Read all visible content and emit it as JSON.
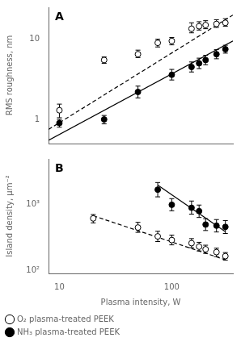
{
  "chart_data": [
    {
      "type": "scatter",
      "ylabel": "RMS roughness, nm",
      "log": true,
      "xlim": [
        8,
        350
      ],
      "ylim": [
        0.5,
        25
      ],
      "xticks": [
        10,
        100
      ],
      "yticks": [
        1,
        10
      ],
      "tick_labels": "y",
      "grid": false,
      "annotations": [
        "A"
      ],
      "series": [
        {
          "type": "line",
          "line_style": "dashed",
          "color": "#000000",
          "x": [
            8,
            350
          ],
          "values": [
            0.75,
            20.0
          ]
        },
        {
          "type": "line",
          "line_style": "solid",
          "color": "#000000",
          "x": [
            8,
            350
          ],
          "values": [
            0.55,
            9.5
          ]
        },
        {
          "type": "scatter",
          "marker": "open_circle",
          "color": "#000000",
          "x": [
            10,
            25,
            50,
            75,
            100,
            150,
            175,
            200,
            250,
            300
          ],
          "values": [
            1.3,
            5.5,
            6.5,
            9.0,
            9.5,
            13.5,
            14.5,
            15.0,
            15.5,
            16.0
          ],
          "yerr_lo": [
            0.25,
            0.5,
            0.6,
            1.0,
            1.0,
            1.5,
            1.5,
            1.5,
            1.5,
            1.5
          ],
          "yerr_hi": [
            0.25,
            0.5,
            0.8,
            1.0,
            1.0,
            2.5,
            2.0,
            2.0,
            2.0,
            2.0
          ]
        },
        {
          "type": "scatter",
          "marker": "circle",
          "color": "#000000",
          "x": [
            10,
            25,
            50,
            100,
            150,
            175,
            200,
            250,
            300
          ],
          "values": [
            0.9,
            1.0,
            2.2,
            3.6,
            4.5,
            5.0,
            5.5,
            6.5,
            7.5
          ],
          "yerr_lo": [
            0.1,
            0.12,
            0.35,
            0.5,
            0.6,
            0.7,
            0.7,
            0.8,
            0.8
          ],
          "yerr_hi": [
            0.1,
            0.12,
            0.4,
            0.6,
            0.7,
            0.8,
            0.8,
            0.9,
            0.9
          ]
        }
      ]
    },
    {
      "type": "scatter",
      "ylabel": "Island density, μm⁻²",
      "xlabel": "Plasma intensity, W",
      "log": true,
      "xlim": [
        8,
        350
      ],
      "ylim": [
        90,
        5000
      ],
      "xticks": [
        10,
        100
      ],
      "yticks": [
        {
          "value": 100,
          "label": "10²"
        },
        {
          "value": 1000,
          "label": "10³"
        }
      ],
      "grid": false,
      "legend": "lower left",
      "annotations": [
        "B"
      ],
      "series": [
        {
          "type": "line",
          "line_style": "dashed",
          "color": "#000000",
          "x": [
            20,
            300
          ],
          "values": [
            680,
            145
          ]
        },
        {
          "type": "line",
          "line_style": "solid",
          "color": "#000000",
          "x": [
            75,
            300
          ],
          "values": [
            2000,
            390
          ]
        },
        {
          "type": "scatter",
          "name": "O₂ plasma-treated PEEK",
          "marker": "open_circle",
          "color": "#000000",
          "x": [
            20,
            50,
            75,
            100,
            150,
            175,
            200,
            250,
            300
          ],
          "values": [
            620,
            450,
            330,
            290,
            260,
            230,
            210,
            190,
            165
          ],
          "yerr_lo": [
            90,
            70,
            55,
            45,
            38,
            32,
            28,
            28,
            22
          ],
          "yerr_hi": [
            90,
            90,
            65,
            55,
            45,
            38,
            32,
            28,
            22
          ]
        },
        {
          "type": "scatter",
          "name": "NH₃ plasma-treated PEEK",
          "marker": "circle",
          "color": "#000000",
          "x": [
            75,
            100,
            150,
            175,
            200,
            250,
            300
          ],
          "values": [
            1700,
            1000,
            900,
            800,
            500,
            480,
            460
          ],
          "yerr_lo": [
            380,
            190,
            180,
            160,
            95,
            95,
            95
          ],
          "yerr_hi": [
            480,
            240,
            240,
            190,
            115,
            115,
            115
          ]
        }
      ]
    }
  ]
}
